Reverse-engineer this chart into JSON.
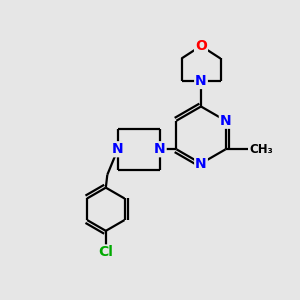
{
  "bg_color": "#e6e6e6",
  "bond_color": "#000000",
  "bond_width": 1.6,
  "atom_colors": {
    "N": "#0000ff",
    "O": "#ff0000",
    "Cl": "#00aa00",
    "C": "#000000"
  },
  "scale": 1.0
}
